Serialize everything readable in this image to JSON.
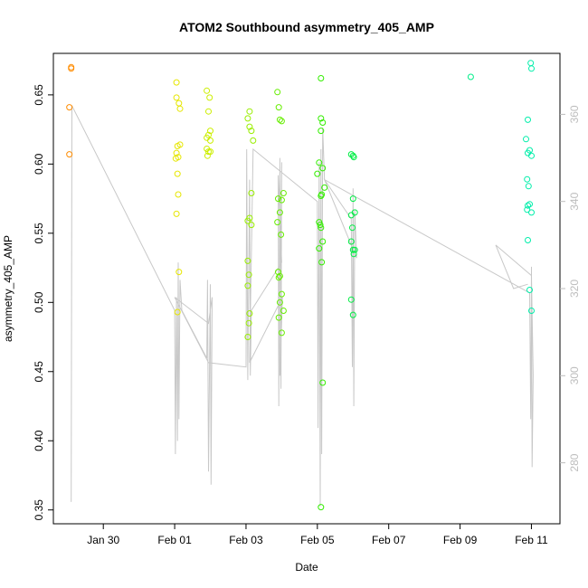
{
  "chart_data": {
    "type": "scatter",
    "title": "ATOM2 Southbound asymmetry_405_AMP",
    "xlabel": "Date",
    "ylabel": "asymmetry_405_AMP",
    "grid": false,
    "x_ticks": [
      "Jan 30",
      "Feb 01",
      "Feb 03",
      "Feb 05",
      "Feb 07",
      "Feb 09",
      "Feb 11"
    ],
    "x_tick_days": [
      30,
      32,
      34,
      36,
      38,
      40,
      42
    ],
    "xlim_days": [
      28.6,
      42.8
    ],
    "ylim": [
      0.34,
      0.68
    ],
    "y_ticks": [
      0.35,
      0.4,
      0.45,
      0.5,
      0.55,
      0.6,
      0.65
    ],
    "y_tick_labels": [
      "0.35",
      "0.40",
      "0.45",
      "0.50",
      "0.55",
      "0.60",
      "0.65"
    ],
    "right_axis": {
      "ylim": [
        266,
        374
      ],
      "ticks": [
        280,
        300,
        320,
        340,
        360
      ],
      "tick_labels": [
        "280",
        "300",
        "320",
        "340",
        "360"
      ],
      "color": "#bdbdbd"
    },
    "line_color": "#c8c8c8",
    "colors": {
      "orange": "#ff8c00",
      "yellow": "#e6e600",
      "yellowgreen": "#aaee00",
      "green": "#55ee00",
      "greencyan": "#00ee66",
      "cyan": "#00eeaa"
    },
    "series": [
      {
        "color": "#ff8c00",
        "points": [
          [
            29.1,
            0.67
          ],
          [
            29.1,
            0.669
          ],
          [
            29.05,
            0.641
          ],
          [
            29.05,
            0.607
          ]
        ]
      },
      {
        "color": "#e6e600",
        "points": [
          [
            32.05,
            0.659
          ],
          [
            32.05,
            0.648
          ],
          [
            32.12,
            0.644
          ],
          [
            32.15,
            0.64
          ],
          [
            32.08,
            0.613
          ],
          [
            32.15,
            0.614
          ],
          [
            32.05,
            0.608
          ],
          [
            32.1,
            0.605
          ],
          [
            32.03,
            0.604
          ],
          [
            32.08,
            0.593
          ],
          [
            32.1,
            0.578
          ],
          [
            32.05,
            0.564
          ],
          [
            32.12,
            0.522
          ],
          [
            32.08,
            0.493
          ]
        ]
      },
      {
        "color": "#ccee00",
        "points": [
          [
            32.9,
            0.653
          ],
          [
            32.98,
            0.648
          ],
          [
            32.95,
            0.638
          ],
          [
            33.0,
            0.624
          ],
          [
            32.95,
            0.621
          ],
          [
            32.9,
            0.619
          ],
          [
            33.0,
            0.617
          ],
          [
            32.9,
            0.611
          ],
          [
            32.95,
            0.609
          ],
          [
            33.0,
            0.609
          ],
          [
            32.92,
            0.606
          ]
        ]
      },
      {
        "color": "#99ee00",
        "points": [
          [
            34.1,
            0.638
          ],
          [
            34.05,
            0.633
          ],
          [
            34.1,
            0.627
          ],
          [
            34.15,
            0.624
          ],
          [
            34.2,
            0.617
          ],
          [
            34.15,
            0.579
          ],
          [
            34.1,
            0.561
          ],
          [
            34.05,
            0.559
          ],
          [
            34.15,
            0.556
          ],
          [
            34.05,
            0.53
          ],
          [
            34.08,
            0.52
          ],
          [
            34.05,
            0.512
          ],
          [
            34.1,
            0.492
          ],
          [
            34.08,
            0.485
          ],
          [
            34.05,
            0.475
          ]
        ]
      },
      {
        "color": "#66ee00",
        "points": [
          [
            34.88,
            0.652
          ],
          [
            34.92,
            0.641
          ],
          [
            34.95,
            0.632
          ],
          [
            35.0,
            0.631
          ],
          [
            35.05,
            0.579
          ],
          [
            35.0,
            0.574
          ],
          [
            34.9,
            0.575
          ],
          [
            34.95,
            0.565
          ],
          [
            34.88,
            0.558
          ],
          [
            34.98,
            0.549
          ],
          [
            34.9,
            0.522
          ],
          [
            34.92,
            0.518
          ],
          [
            34.95,
            0.519
          ],
          [
            35.0,
            0.506
          ],
          [
            34.95,
            0.5
          ],
          [
            34.92,
            0.489
          ],
          [
            35.05,
            0.494
          ],
          [
            35.0,
            0.478
          ]
        ]
      },
      {
        "color": "#33ee00",
        "points": [
          [
            36.1,
            0.662
          ],
          [
            36.1,
            0.633
          ],
          [
            36.15,
            0.63
          ],
          [
            36.1,
            0.624
          ],
          [
            36.05,
            0.601
          ],
          [
            36.15,
            0.597
          ],
          [
            36.0,
            0.593
          ],
          [
            36.2,
            0.583
          ],
          [
            36.1,
            0.577
          ],
          [
            36.12,
            0.578
          ],
          [
            36.05,
            0.558
          ],
          [
            36.08,
            0.556
          ],
          [
            36.1,
            0.554
          ],
          [
            36.15,
            0.544
          ],
          [
            36.05,
            0.539
          ],
          [
            36.12,
            0.529
          ],
          [
            36.15,
            0.442
          ],
          [
            36.1,
            0.352
          ]
        ]
      },
      {
        "color": "#00ee44",
        "points": [
          [
            36.95,
            0.607
          ],
          [
            37.0,
            0.606
          ],
          [
            37.02,
            0.605
          ],
          [
            37.0,
            0.575
          ],
          [
            37.05,
            0.565
          ],
          [
            36.95,
            0.563
          ],
          [
            36.98,
            0.554
          ],
          [
            36.95,
            0.544
          ],
          [
            37.0,
            0.538
          ],
          [
            37.05,
            0.538
          ],
          [
            37.02,
            0.535
          ],
          [
            36.95,
            0.502
          ],
          [
            37.0,
            0.491
          ]
        ]
      },
      {
        "color": "#00ee88",
        "points": [
          [
            40.3,
            0.663
          ]
        ]
      },
      {
        "color": "#00eeaa",
        "points": [
          [
            41.98,
            0.673
          ],
          [
            42.0,
            0.669
          ],
          [
            41.9,
            0.632
          ],
          [
            41.85,
            0.618
          ],
          [
            41.95,
            0.61
          ],
          [
            42.0,
            0.606
          ],
          [
            41.9,
            0.608
          ],
          [
            41.88,
            0.589
          ],
          [
            41.92,
            0.584
          ],
          [
            41.95,
            0.571
          ],
          [
            41.9,
            0.57
          ],
          [
            41.88,
            0.567
          ],
          [
            42.0,
            0.565
          ],
          [
            41.9,
            0.545
          ],
          [
            41.95,
            0.509
          ],
          [
            42.0,
            0.494
          ]
        ]
      }
    ],
    "right_series": [
      {
        "name": "",
        "points": [
          [
            29.1,
            271
          ],
          [
            29.12,
            362
          ],
          [
            32.0,
            315
          ],
          [
            32.02,
            282
          ],
          [
            32.05,
            318
          ],
          [
            32.08,
            285
          ],
          [
            32.1,
            326
          ],
          [
            32.12,
            290
          ],
          [
            32.15,
            322
          ],
          [
            32.2,
            315
          ],
          [
            32.9,
            304
          ],
          [
            32.92,
            322
          ],
          [
            32.95,
            278
          ],
          [
            33.0,
            321
          ],
          [
            33.02,
            275
          ],
          [
            33.05,
            318
          ],
          [
            32.95,
            312
          ],
          [
            32.0,
            318
          ],
          [
            32.95,
            303
          ],
          [
            34.0,
            302
          ],
          [
            34.02,
            352
          ],
          [
            34.05,
            299
          ],
          [
            34.1,
            345
          ],
          [
            34.12,
            300
          ],
          [
            34.15,
            315
          ],
          [
            35.0,
            326
          ],
          [
            34.9,
            346
          ],
          [
            34.92,
            293
          ],
          [
            34.95,
            350
          ],
          [
            34.98,
            297
          ],
          [
            35.0,
            349
          ],
          [
            34.95,
            300
          ],
          [
            35.02,
            318
          ],
          [
            34.1,
            303
          ],
          [
            34.2,
            352
          ],
          [
            36.0,
            340
          ],
          [
            36.02,
            288
          ],
          [
            36.05,
            349
          ],
          [
            36.08,
            270
          ],
          [
            36.1,
            352
          ],
          [
            36.12,
            282
          ],
          [
            36.15,
            357
          ],
          [
            36.2,
            345
          ],
          [
            36.95,
            336
          ],
          [
            36.98,
            302
          ],
          [
            37.0,
            343
          ],
          [
            37.02,
            293
          ],
          [
            37.05,
            338
          ],
          [
            37.1,
            327
          ],
          [
            36.2,
            345
          ],
          [
            41.95,
            319
          ],
          [
            41.98,
            290
          ],
          [
            42.0,
            325
          ],
          [
            42.02,
            279
          ],
          [
            42.05,
            300
          ],
          [
            42.0,
            323
          ],
          [
            41.0,
            330
          ],
          [
            41.5,
            320
          ],
          [
            41.9,
            321
          ]
        ]
      }
    ]
  }
}
